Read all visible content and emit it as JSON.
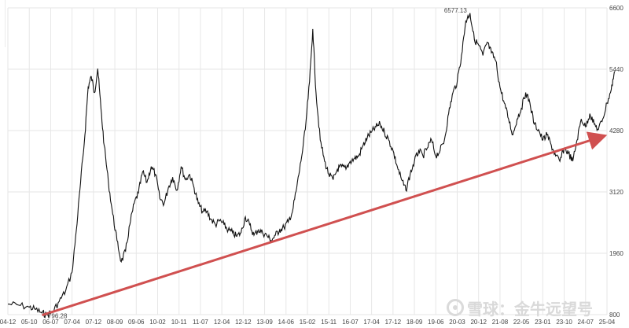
{
  "chart_data": {
    "type": "line",
    "title": "",
    "xlabel": "",
    "ylabel": "",
    "x_ticks": [
      "04-12",
      "05-10",
      "06-07",
      "07-04",
      "07-12",
      "08-09",
      "09-06",
      "10-02",
      "10-11",
      "11-07",
      "12-04",
      "12-12",
      "13-09",
      "14-06",
      "15-02",
      "15-11",
      "16-07",
      "17-04",
      "17-12",
      "18-09",
      "19-06",
      "20-03",
      "20-12",
      "21-08",
      "22-05",
      "23-01",
      "23-10",
      "24-07",
      "25-04"
    ],
    "y_ticks": [
      800,
      1960,
      3120,
      4280,
      5440,
      6600
    ],
    "ylim": [
      800,
      6600
    ],
    "grid": true,
    "annotations": {
      "max_label": "6577.13",
      "min_label": "796.28"
    },
    "series": [
      {
        "color": "#111111",
        "points": [
          [
            0,
            1000
          ],
          [
            0.5,
            980
          ],
          [
            1.0,
            940
          ],
          [
            1.3,
            900
          ],
          [
            1.6,
            830
          ],
          [
            1.8,
            796.28
          ],
          [
            2.1,
            860
          ],
          [
            2.4,
            1050
          ],
          [
            2.7,
            1250
          ],
          [
            3.0,
            1600
          ],
          [
            3.2,
            2400
          ],
          [
            3.4,
            3300
          ],
          [
            3.6,
            4200
          ],
          [
            3.75,
            5100
          ],
          [
            3.9,
            5300
          ],
          [
            4.05,
            5000
          ],
          [
            4.2,
            5450
          ],
          [
            4.35,
            4700
          ],
          [
            4.5,
            4000
          ],
          [
            4.7,
            3300
          ],
          [
            4.9,
            2700
          ],
          [
            5.1,
            2200
          ],
          [
            5.3,
            1800
          ],
          [
            5.5,
            2000
          ],
          [
            5.7,
            2500
          ],
          [
            5.9,
            2900
          ],
          [
            6.1,
            3100
          ],
          [
            6.3,
            3500
          ],
          [
            6.5,
            3300
          ],
          [
            6.7,
            3600
          ],
          [
            6.9,
            3450
          ],
          [
            7.1,
            3000
          ],
          [
            7.3,
            2900
          ],
          [
            7.5,
            3200
          ],
          [
            7.7,
            3400
          ],
          [
            7.9,
            3150
          ],
          [
            8.1,
            3600
          ],
          [
            8.3,
            3350
          ],
          [
            8.5,
            3450
          ],
          [
            8.7,
            3200
          ],
          [
            8.9,
            2900
          ],
          [
            9.1,
            2750
          ],
          [
            9.3,
            2750
          ],
          [
            9.5,
            2600
          ],
          [
            9.7,
            2500
          ],
          [
            9.9,
            2580
          ],
          [
            10.1,
            2500
          ],
          [
            10.3,
            2400
          ],
          [
            10.5,
            2350
          ],
          [
            10.7,
            2280
          ],
          [
            10.9,
            2350
          ],
          [
            11.1,
            2650
          ],
          [
            11.3,
            2500
          ],
          [
            11.5,
            2300
          ],
          [
            11.7,
            2400
          ],
          [
            11.9,
            2350
          ],
          [
            12.1,
            2300
          ],
          [
            12.3,
            2200
          ],
          [
            12.5,
            2300
          ],
          [
            12.7,
            2400
          ],
          [
            12.9,
            2450
          ],
          [
            13.1,
            2550
          ],
          [
            13.3,
            2750
          ],
          [
            13.5,
            3200
          ],
          [
            13.7,
            3700
          ],
          [
            13.9,
            4300
          ],
          [
            14.1,
            5200
          ],
          [
            14.25,
            6200
          ],
          [
            14.4,
            5000
          ],
          [
            14.6,
            4100
          ],
          [
            14.8,
            3700
          ],
          [
            15.0,
            3450
          ],
          [
            15.2,
            3350
          ],
          [
            15.4,
            3550
          ],
          [
            15.6,
            3600
          ],
          [
            15.8,
            3550
          ],
          [
            16.0,
            3700
          ],
          [
            16.2,
            3750
          ],
          [
            16.4,
            3800
          ],
          [
            16.6,
            4000
          ],
          [
            16.8,
            4150
          ],
          [
            17.0,
            4250
          ],
          [
            17.2,
            4350
          ],
          [
            17.4,
            4400
          ],
          [
            17.6,
            4250
          ],
          [
            17.8,
            4100
          ],
          [
            18.0,
            3900
          ],
          [
            18.2,
            3600
          ],
          [
            18.4,
            3350
          ],
          [
            18.6,
            3150
          ],
          [
            18.8,
            3450
          ],
          [
            19.0,
            3700
          ],
          [
            19.2,
            3900
          ],
          [
            19.4,
            3800
          ],
          [
            19.6,
            3950
          ],
          [
            19.8,
            4100
          ],
          [
            20.0,
            3800
          ],
          [
            20.2,
            3900
          ],
          [
            20.4,
            4100
          ],
          [
            20.6,
            4600
          ],
          [
            20.8,
            5000
          ],
          [
            21.0,
            5200
          ],
          [
            21.2,
            5700
          ],
          [
            21.4,
            6350
          ],
          [
            21.6,
            6500
          ],
          [
            21.8,
            6000
          ],
          [
            22.0,
            5900
          ],
          [
            22.2,
            5700
          ],
          [
            22.4,
            5950
          ],
          [
            22.6,
            5750
          ],
          [
            22.8,
            5600
          ],
          [
            23.0,
            5100
          ],
          [
            23.2,
            4800
          ],
          [
            23.4,
            4500
          ],
          [
            23.6,
            4200
          ],
          [
            23.8,
            4500
          ],
          [
            24.0,
            4700
          ],
          [
            24.2,
            5000
          ],
          [
            24.4,
            4800
          ],
          [
            24.6,
            4400
          ],
          [
            24.8,
            4300
          ],
          [
            25.0,
            4100
          ],
          [
            25.2,
            4200
          ],
          [
            25.4,
            4000
          ],
          [
            25.6,
            3800
          ],
          [
            25.8,
            3700
          ],
          [
            26.0,
            3950
          ],
          [
            26.2,
            3850
          ],
          [
            26.4,
            3700
          ],
          [
            26.6,
            4100
          ],
          [
            26.8,
            4500
          ],
          [
            27.0,
            4350
          ],
          [
            27.2,
            4600
          ],
          [
            27.4,
            4400
          ],
          [
            27.6,
            4300
          ],
          [
            27.8,
            4500
          ],
          [
            28.0,
            4800
          ],
          [
            28.2,
            5050
          ],
          [
            28.35,
            5400
          ]
        ]
      },
      {
        "color": "#d05050",
        "points": [
          [
            1.6,
            790
          ],
          [
            27.8,
            4170
          ]
        ]
      }
    ]
  }
}
